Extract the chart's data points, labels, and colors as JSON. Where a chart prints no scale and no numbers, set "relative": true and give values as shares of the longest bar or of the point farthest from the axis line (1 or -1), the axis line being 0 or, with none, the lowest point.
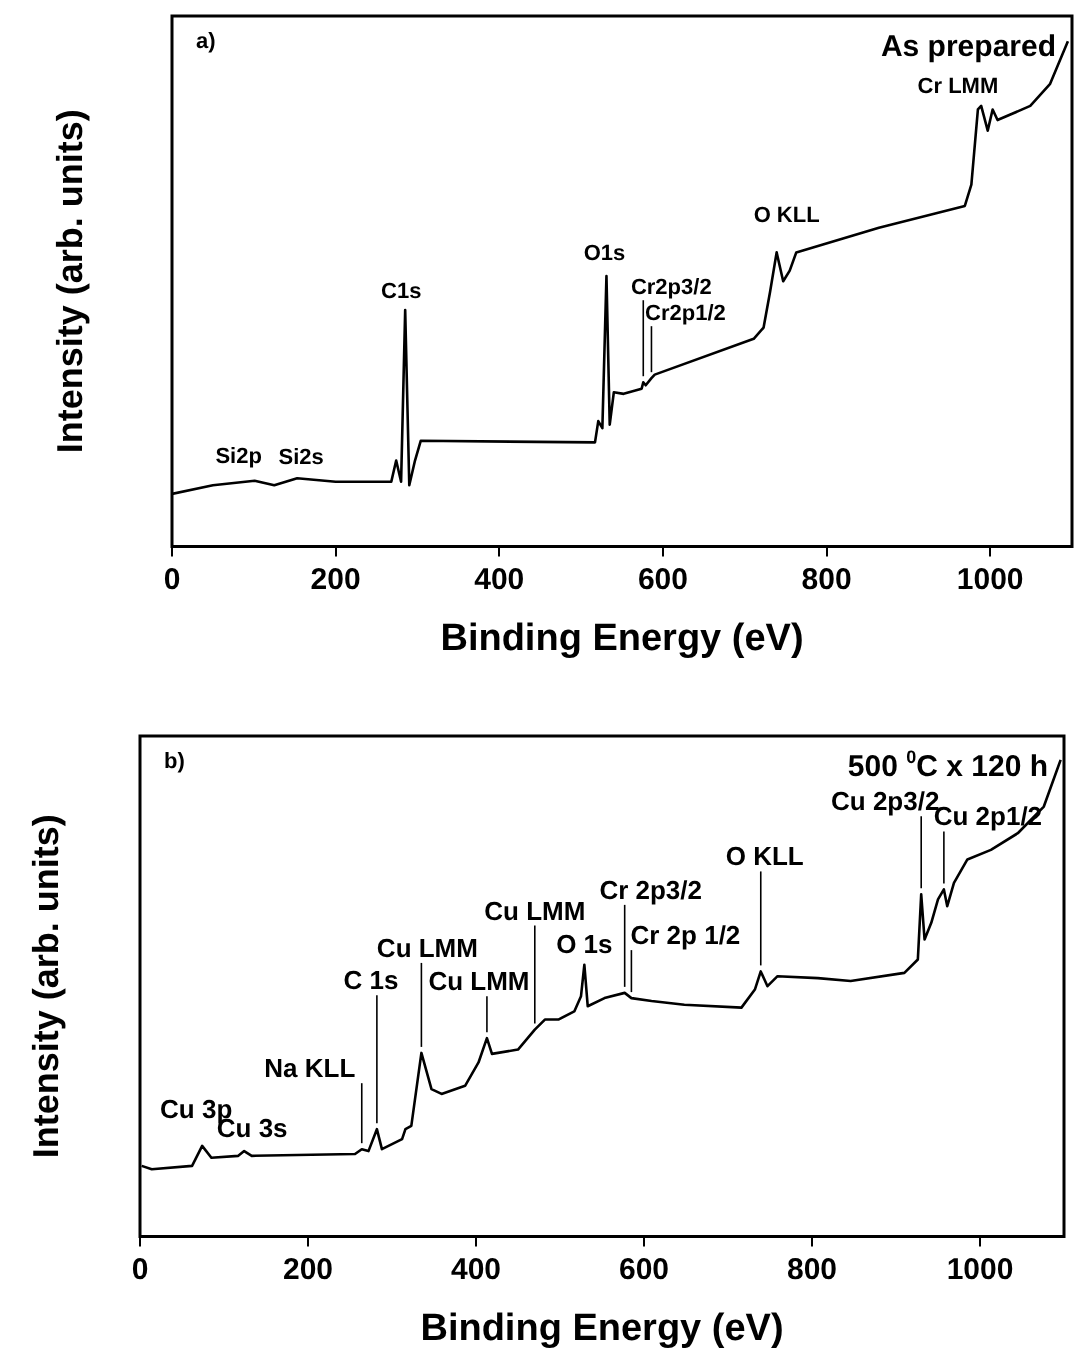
{
  "chart_data": [
    {
      "type": "line",
      "relative": true,
      "xlabel": "Binding Energy (eV)",
      "ylabel": "Intensity (arb. units)",
      "xlim": [
        0,
        1100
      ],
      "xticks": [
        0,
        200,
        400,
        600,
        800,
        1000
      ],
      "tick_labels": "x",
      "marker": "none",
      "line_style": "solid",
      "color": "#000000",
      "x": [
        0,
        50,
        101,
        125,
        153,
        200,
        268,
        274,
        280,
        285,
        290,
        297,
        304,
        517,
        521,
        526,
        531,
        535,
        540,
        552,
        574,
        576,
        579,
        586,
        590,
        711,
        723,
        731,
        739,
        747,
        755,
        763,
        864,
        969,
        977,
        985,
        989,
        997,
        1003,
        1009,
        1049,
        1073,
        1095
      ],
      "values": [
        0.104,
        0.121,
        0.13,
        0.121,
        0.135,
        0.128,
        0.128,
        0.17,
        0.128,
        0.468,
        0.121,
        0.17,
        0.209,
        0.206,
        0.248,
        0.234,
        0.535,
        0.241,
        0.305,
        0.302,
        0.312,
        0.325,
        0.319,
        0.333,
        0.34,
        0.411,
        0.433,
        0.504,
        0.582,
        0.525,
        0.546,
        0.582,
        0.631,
        0.674,
        0.716,
        0.865,
        0.872,
        0.823,
        0.865,
        0.844,
        0.872,
        0.915,
        1
      ],
      "annotations": [
        "a)",
        "As prepared",
        {
          "text": "Si2p",
          "x": 101,
          "y": 0.13
        },
        {
          "text": "Si2s",
          "x": 153,
          "y": 0.135
        },
        {
          "text": "C1s",
          "x": 285,
          "y": 0.468
        },
        {
          "text": "O1s",
          "x": 531,
          "y": 0.535
        },
        {
          "text": "Cr2p3/2",
          "x": 576,
          "y": 0.325
        },
        {
          "text": "Cr2p1/2",
          "x": 586,
          "y": 0.333
        },
        {
          "text": "O KLL",
          "x": 739,
          "y": 0.582
        },
        {
          "text": "Cr LMM",
          "x": 985,
          "y": 0.865
        }
      ]
    },
    {
      "type": "line",
      "relative": true,
      "xlabel": "Binding Energy (eV)",
      "ylabel": "Intensity (arb. units)",
      "xlim": [
        0,
        1100
      ],
      "xticks": [
        0,
        200,
        400,
        600,
        800,
        1000
      ],
      "tick_labels": "x",
      "marker": "none",
      "line_style": "solid",
      "color": "#000000",
      "x": [
        2,
        14,
        62,
        74,
        85,
        117,
        124,
        133,
        256,
        264,
        272,
        282,
        288,
        312,
        316,
        323,
        335,
        347,
        359,
        387,
        403,
        413,
        419,
        450,
        470,
        482,
        498,
        517,
        525,
        529,
        533,
        553,
        577,
        585,
        609,
        648,
        716,
        732,
        739,
        747,
        759,
        807,
        846,
        910,
        926,
        930,
        934,
        942,
        950,
        957,
        961,
        969,
        985,
        1013,
        1045,
        1076,
        1096
      ],
      "values": [
        0.148,
        0.141,
        0.148,
        0.19,
        0.165,
        0.169,
        0.179,
        0.169,
        0.173,
        0.183,
        0.179,
        0.225,
        0.183,
        0.204,
        0.225,
        0.232,
        0.385,
        0.309,
        0.299,
        0.316,
        0.365,
        0.416,
        0.383,
        0.392,
        0.434,
        0.455,
        0.455,
        0.472,
        0.504,
        0.57,
        0.483,
        0.5,
        0.511,
        0.5,
        0.494,
        0.486,
        0.48,
        0.518,
        0.556,
        0.525,
        0.546,
        0.542,
        0.536,
        0.553,
        0.581,
        0.718,
        0.623,
        0.658,
        0.707,
        0.728,
        0.693,
        0.742,
        0.791,
        0.811,
        0.846,
        0.902,
        1
      ],
      "annotations": [
        "b)",
        "500 $^{0}$C x 120 h",
        {
          "text": "Cu 3p",
          "x": 74,
          "y": 0.19
        },
        {
          "text": "Cu 3s",
          "x": 124,
          "y": 0.179
        },
        {
          "text": "Na KLL",
          "x": 264,
          "y": 0.183
        },
        {
          "text": "C 1s",
          "x": 282,
          "y": 0.225
        },
        {
          "text": "Cu LMM",
          "x": 335,
          "y": 0.385
        },
        {
          "text": "Cu LMM",
          "x": 413,
          "y": 0.416
        },
        {
          "text": "Cu LMM",
          "x": 470,
          "y": 0.434
        },
        {
          "text": "O 1s",
          "x": 529,
          "y": 0.57
        },
        {
          "text": "Cr 2p3/2",
          "x": 577,
          "y": 0.511
        },
        {
          "text": "Cr 2p 1/2",
          "x": 585,
          "y": 0.5
        },
        {
          "text": "O KLL",
          "x": 739,
          "y": 0.556
        },
        {
          "text": "Cu 2p3/2",
          "x": 930,
          "y": 0.718
        },
        {
          "text": "Cu 2p1/2",
          "x": 957,
          "y": 0.728
        }
      ]
    }
  ]
}
